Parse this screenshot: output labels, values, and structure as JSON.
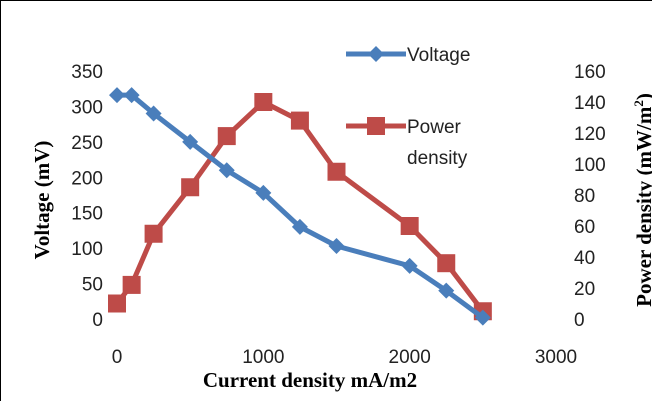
{
  "chart_data": {
    "type": "line",
    "xlabel": "Current density mA/m2",
    "ylabel": "Voltage (mV)",
    "y2label_main": "Power density (mW/m",
    "y2label_sup": "2",
    "y2label_end": ")",
    "xlim": [
      0,
      3000
    ],
    "ylim": [
      0,
      350
    ],
    "y2lim": [
      0,
      160
    ],
    "xticks": [
      "0",
      "1000",
      "2000",
      "3000"
    ],
    "yticks": [
      "0",
      "50",
      "100",
      "150",
      "200",
      "250",
      "300",
      "350"
    ],
    "y2ticks": [
      "0",
      "20",
      "40",
      "60",
      "80",
      "100",
      "120",
      "140",
      "160"
    ],
    "legend_position": "top-center",
    "series": [
      {
        "name": "Voltage",
        "axis": "left",
        "color": "#4a7ebb",
        "marker": "diamond",
        "x": [
          0,
          100,
          250,
          500,
          750,
          1000,
          1250,
          1500,
          2000,
          2250,
          2500
        ],
        "y": [
          316,
          316,
          290,
          250,
          210,
          178,
          130,
          103,
          75,
          40,
          2
        ]
      },
      {
        "name": "Power density",
        "legend_lines": [
          "Power",
          "density"
        ],
        "axis": "right",
        "color": "#be4b48",
        "marker": "square",
        "x": [
          0,
          100,
          250,
          500,
          750,
          1000,
          1250,
          1500,
          2000,
          2250,
          2500
        ],
        "y": [
          10,
          22,
          55,
          85,
          118,
          140,
          128,
          95,
          60,
          36,
          5
        ]
      }
    ]
  }
}
